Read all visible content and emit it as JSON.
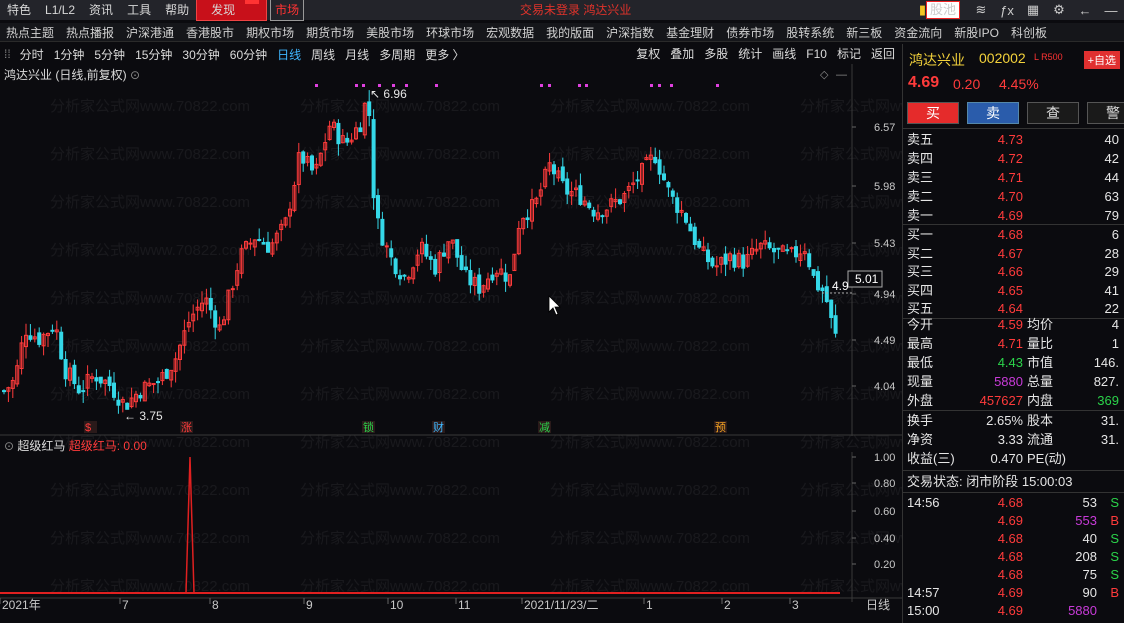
{
  "menu": {
    "items": [
      "特色",
      "L1/L2",
      "资讯",
      "工具",
      "帮助"
    ],
    "discover": "发现",
    "market": "市场",
    "center_title": "交易未登录 鸿达兴业",
    "stock_pool": "股池"
  },
  "nav": [
    "热点主题",
    "热点播报",
    "沪深港通",
    "香港股市",
    "期权市场",
    "期货市场",
    "美股市场",
    "环球市场",
    "宏观数据",
    "我的版面",
    "沪深指数",
    "基金理财",
    "债券市场",
    "股转系统",
    "新三板",
    "资金流向",
    "新股IPO",
    "科创板"
  ],
  "periods": [
    "分时",
    "1分钟",
    "5分钟",
    "15分钟",
    "30分钟",
    "60分钟",
    "日线",
    "周线",
    "月线",
    "多周期",
    "更多 〉"
  ],
  "active_period": "日线",
  "tools": [
    "复权",
    "叠加",
    "多股",
    "统计",
    "画线",
    "F10",
    "标记",
    "返回"
  ],
  "chart_title": "鸿达兴业 (日线,前复权)",
  "watermark": "分析家公式网www.70822.com",
  "price_axis": [
    "6.57",
    "5.98",
    "5.43",
    "4.94",
    "4.49",
    "4.04"
  ],
  "high_label": "6.96",
  "low_label": "3.75",
  "price_tag": "5.01",
  "price_tag2": "4.9",
  "markers": [
    {
      "t": "$",
      "c": "#ff3b3b"
    },
    {
      "t": "涨",
      "c": "#ff3b3b"
    },
    {
      "t": "锁",
      "c": "#2bd34a"
    },
    {
      "t": "财",
      "c": "#3fb7ff"
    },
    {
      "t": "减",
      "c": "#2bd34a"
    },
    {
      "t": "预",
      "c": "#f0a020"
    }
  ],
  "indicator": {
    "name": "超级红马",
    "label": "超级红马: 0.00",
    "axis": [
      "1.00",
      "0.80",
      "0.60",
      "0.40",
      "0.20"
    ]
  },
  "time_axis": {
    "labels": [
      "2021年",
      "7",
      "8",
      "9",
      "10",
      "11",
      "2021/11/23/二",
      "1",
      "2",
      "3"
    ],
    "period": "日线"
  },
  "stock": {
    "name": "鸿达兴业",
    "code": "002002",
    "flag": "L R500",
    "add": "+自选",
    "price": "4.69",
    "change": "0.20",
    "pct": "4.45%",
    "buy": "买",
    "sell": "卖",
    "query": "查",
    "alert": "警",
    "asks": [
      {
        "l": "卖五",
        "p": "4.73",
        "v": "40"
      },
      {
        "l": "卖四",
        "p": "4.72",
        "v": "42"
      },
      {
        "l": "卖三",
        "p": "4.71",
        "v": "44"
      },
      {
        "l": "卖二",
        "p": "4.70",
        "v": "63"
      },
      {
        "l": "卖一",
        "p": "4.69",
        "v": "79"
      }
    ],
    "bids": [
      {
        "l": "买一",
        "p": "4.68",
        "v": "6"
      },
      {
        "l": "买二",
        "p": "4.67",
        "v": "28"
      },
      {
        "l": "买三",
        "p": "4.66",
        "v": "29"
      },
      {
        "l": "买四",
        "p": "4.65",
        "v": "41"
      },
      {
        "l": "买五",
        "p": "4.64",
        "v": "22"
      }
    ],
    "stats": [
      {
        "l1": "今开",
        "v1": "4.59",
        "c1": "red",
        "l2": "均价",
        "v2": "4",
        "c2": "white"
      },
      {
        "l1": "最高",
        "v1": "4.71",
        "c1": "red",
        "l2": "量比",
        "v2": "1",
        "c2": "white"
      },
      {
        "l1": "最低",
        "v1": "4.43",
        "c1": "green",
        "l2": "市值",
        "v2": "146.",
        "c2": "white"
      },
      {
        "l1": "现量",
        "v1": "5880",
        "c1": "mag",
        "l2": "总量",
        "v2": "827.",
        "c2": "white"
      },
      {
        "l1": "外盘",
        "v1": "457627",
        "c1": "red",
        "l2": "内盘",
        "v2": "369",
        "c2": "green"
      }
    ],
    "stats2": [
      {
        "l1": "换手",
        "v1": "2.65%",
        "l2": "股本",
        "v2": "31."
      },
      {
        "l1": "净资",
        "v1": "3.33",
        "l2": "流通",
        "v2": "31."
      },
      {
        "l1": "收益(三)",
        "v1": "0.470",
        "l2": "PE(动)",
        "v2": ""
      }
    ],
    "status": "交易状态: 闭市阶段 15:00:03",
    "ticks": [
      {
        "t": "14:56",
        "p": "4.68",
        "v": "53",
        "s": "S",
        "pc": "red",
        "vc": "white",
        "sc": "green"
      },
      {
        "t": "",
        "p": "4.69",
        "v": "553",
        "s": "B",
        "pc": "red",
        "vc": "mag",
        "sc": "red"
      },
      {
        "t": "",
        "p": "4.68",
        "v": "40",
        "s": "S",
        "pc": "red",
        "vc": "white",
        "sc": "green"
      },
      {
        "t": "",
        "p": "4.68",
        "v": "208",
        "s": "S",
        "pc": "red",
        "vc": "white",
        "sc": "green"
      },
      {
        "t": "",
        "p": "4.68",
        "v": "75",
        "s": "S",
        "pc": "red",
        "vc": "white",
        "sc": "green"
      },
      {
        "t": "14:57",
        "p": "4.69",
        "v": "90",
        "s": "B",
        "pc": "red",
        "vc": "white",
        "sc": "red"
      },
      {
        "t": "15:00",
        "p": "4.69",
        "v": "5880",
        "s": "",
        "pc": "red",
        "vc": "mag",
        "sc": "white"
      }
    ]
  }
}
